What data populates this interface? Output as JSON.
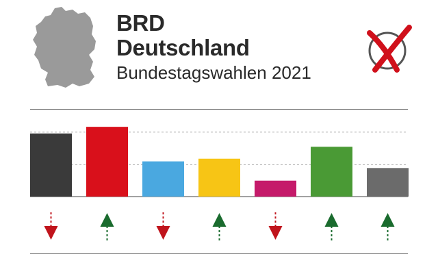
{
  "header": {
    "line1": "BRD",
    "line2": "Deutschland",
    "subtitle": "Bundestagswahlen 2021"
  },
  "icons": {
    "map": "germany-map-icon",
    "ballot": "ballot-cross-icon"
  },
  "colors": {
    "map_gray": "#9a9a9a",
    "ballot_red": "#d0101b",
    "ballot_circle": "#555555",
    "arrow_up": "#1a6b2e",
    "arrow_down": "#c0141c"
  },
  "chart_data": {
    "type": "bar",
    "ylim": [
      0,
      100
    ],
    "gridlines": [
      48,
      97
    ],
    "series": [
      {
        "values": [
          95,
          105,
          53,
          57,
          24,
          75,
          43
        ],
        "colors": [
          "#3a3a3a",
          "#d9101b",
          "#4aa8e0",
          "#f7c515",
          "#c51a6a",
          "#4a9a35",
          "#6b6b6b"
        ],
        "trend": [
          "down",
          "up",
          "down",
          "up",
          "down",
          "up",
          "up"
        ]
      }
    ]
  }
}
